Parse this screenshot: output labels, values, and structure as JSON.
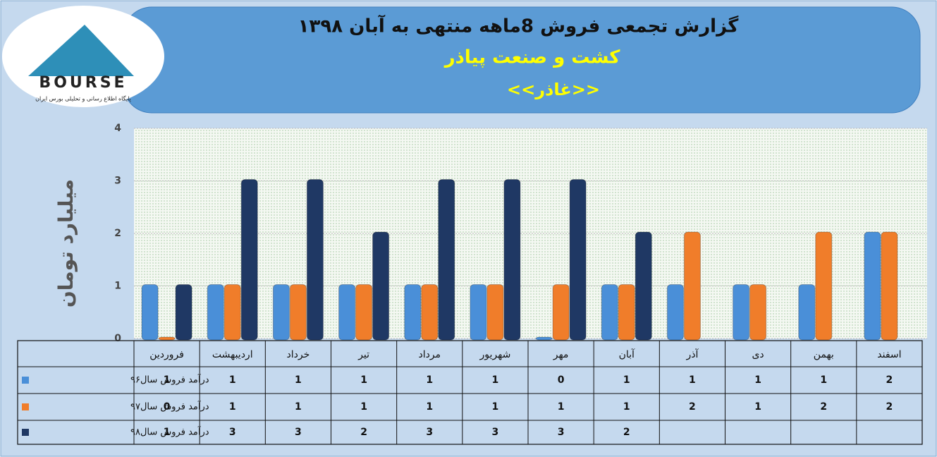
{
  "chart_data": {
    "type": "bar",
    "title": "گزارش تجمعی فروش  8ماهه منتهی به آبان ۱۳۹۸",
    "subtitle": "کشت و صنعت پیاذر",
    "symbol": "<<غاذر>>",
    "logo": {
      "name": "BOURSE",
      "caption": "پایگاه اطلاع رسانی و تحلیلی بورس ایران"
    },
    "y_label": "میلیارد تومان",
    "categories": [
      "فروردین",
      "اردیبهشت",
      "خرداد",
      "تیر",
      "مرداد",
      "شهریور",
      "مهر",
      "آبان",
      "آذر",
      "دی",
      "بهمن",
      "اسفند"
    ],
    "series": [
      {
        "name": "درآمد فروش سال۹۶",
        "color": "#4a8fd8",
        "values": [
          1,
          1,
          1,
          1,
          1,
          1,
          0,
          1,
          1,
          1,
          1,
          2
        ]
      },
      {
        "name": "درآمد فروش سال۹۷",
        "color": "#f07d2a",
        "values": [
          0,
          1,
          1,
          1,
          1,
          1,
          1,
          1,
          2,
          1,
          2,
          2
        ]
      },
      {
        "name": "درآمد فروش سال۹۸",
        "color": "#1f3864",
        "values": [
          1,
          3,
          3,
          2,
          3,
          3,
          3,
          2,
          null,
          null,
          null,
          null
        ]
      }
    ],
    "ylim": [
      0,
      4
    ],
    "yticks": [
      0,
      1,
      2,
      3,
      4
    ],
    "grid": true
  }
}
